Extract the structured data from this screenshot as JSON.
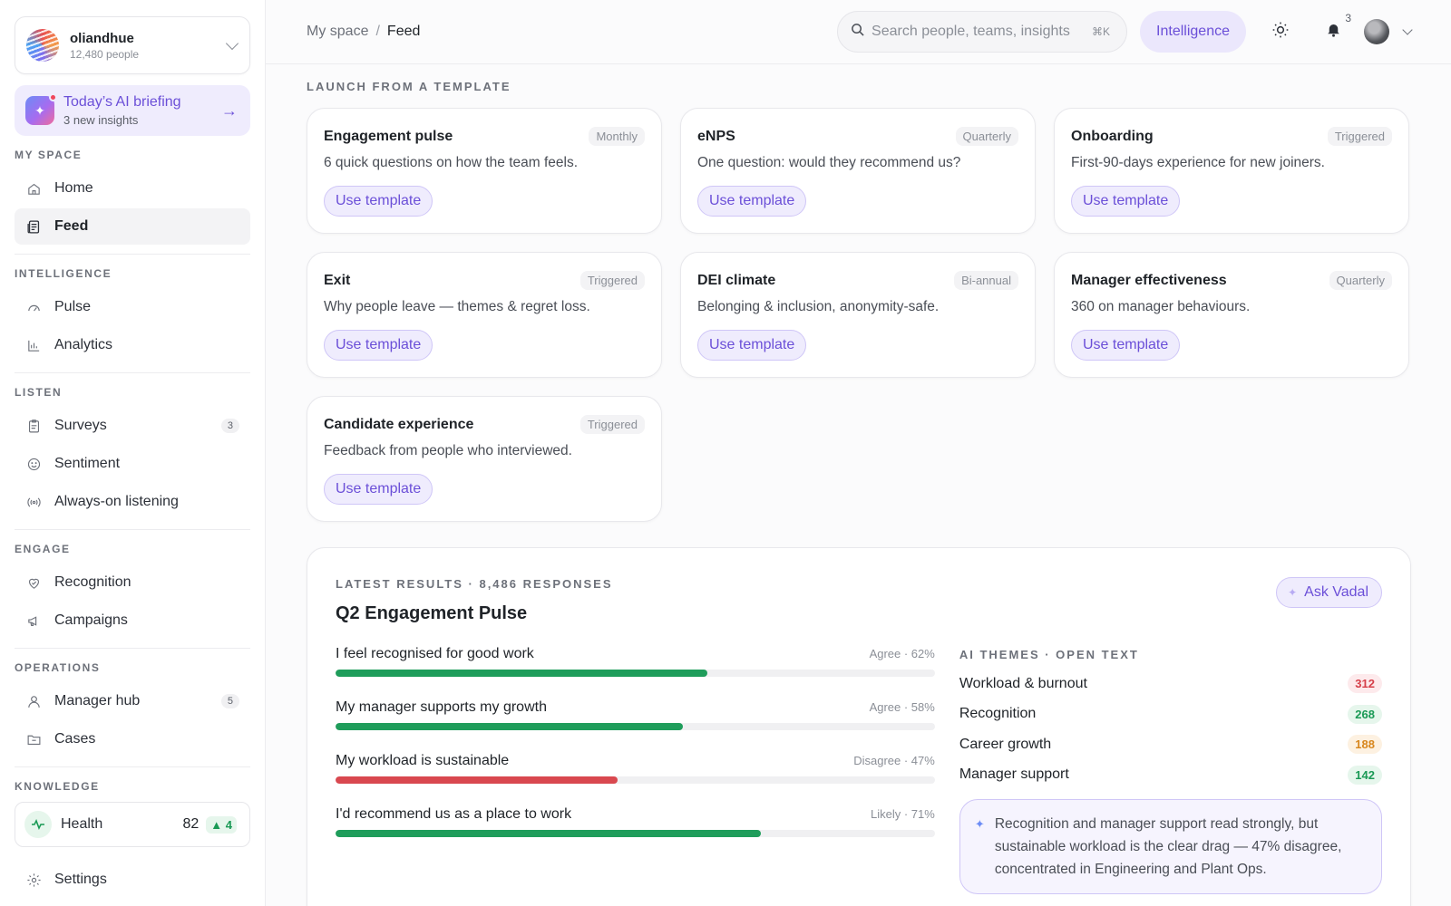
{
  "org": {
    "name": "oliandhue",
    "people": "12,480 people"
  },
  "briefing": {
    "title": "Today’s AI briefing",
    "subtitle": "3 new insights"
  },
  "sidebar": {
    "sections": [
      {
        "label": "MY SPACE",
        "items": [
          {
            "label": "Home",
            "icon": "home-icon"
          },
          {
            "label": "Feed",
            "icon": "feed-icon",
            "active": true
          }
        ]
      },
      {
        "label": "INTELLIGENCE",
        "items": [
          {
            "label": "Pulse",
            "icon": "gauge-icon"
          },
          {
            "label": "Analytics",
            "icon": "chart-icon"
          }
        ]
      },
      {
        "label": "LISTEN",
        "items": [
          {
            "label": "Surveys",
            "icon": "clipboard-icon",
            "badge": "3"
          },
          {
            "label": "Sentiment",
            "icon": "smile-icon"
          },
          {
            "label": "Always-on listening",
            "icon": "broadcast-icon"
          }
        ]
      },
      {
        "label": "ENGAGE",
        "items": [
          {
            "label": "Recognition",
            "icon": "heart-hand-icon"
          },
          {
            "label": "Campaigns",
            "icon": "megaphone-icon"
          }
        ]
      },
      {
        "label": "OPERATIONS",
        "items": [
          {
            "label": "Manager hub",
            "icon": "user-icon",
            "badge": "5"
          },
          {
            "label": "Cases",
            "icon": "folder-icon"
          }
        ]
      }
    ],
    "knowledge_label": "KNOWLEDGE",
    "health": {
      "label": "Health",
      "value": "82",
      "delta": "4"
    },
    "settings_label": "Settings"
  },
  "header": {
    "breadcrumb": [
      "My space",
      "Feed"
    ],
    "search_placeholder": "Search people, teams, insights",
    "search_shortcut": "⌘K",
    "intelligence_label": "Intelligence",
    "notifications_count": "3"
  },
  "templates": {
    "section_label": "LAUNCH FROM A TEMPLATE",
    "button_label": "Use template",
    "items": [
      {
        "title": "Engagement pulse",
        "tag": "Monthly",
        "desc": "6 quick questions on how the team feels."
      },
      {
        "title": "eNPS",
        "tag": "Quarterly",
        "desc": "One question: would they recommend us?"
      },
      {
        "title": "Onboarding",
        "tag": "Triggered",
        "desc": "First-90-days experience for new joiners."
      },
      {
        "title": "Exit",
        "tag": "Triggered",
        "desc": "Why people leave — themes & regret loss."
      },
      {
        "title": "DEI climate",
        "tag": "Bi-annual",
        "desc": "Belonging & inclusion, anonymity-safe."
      },
      {
        "title": "Manager effectiveness",
        "tag": "Quarterly",
        "desc": "360 on manager behaviours."
      },
      {
        "title": "Candidate experience",
        "tag": "Triggered",
        "desc": "Feedback from people who interviewed."
      }
    ]
  },
  "results": {
    "label": "LATEST RESULTS · 8,486 RESPONSES",
    "title": "Q2 Engagement Pulse",
    "ask_label": "Ask Vadal",
    "questions": [
      {
        "q": "I feel recognised for good work",
        "value_label": "Agree · 62%",
        "pct": 62,
        "color": "#1f9d5b"
      },
      {
        "q": "My manager supports my growth",
        "value_label": "Agree · 58%",
        "pct": 58,
        "color": "#1f9d5b"
      },
      {
        "q": "My workload is sustainable",
        "value_label": "Disagree · 47%",
        "pct": 47,
        "color": "#d9484f"
      },
      {
        "q": "I'd recommend us as a place to work",
        "value_label": "Likely · 71%",
        "pct": 71,
        "color": "#1f9d5b"
      }
    ],
    "themes_label": "AI THEMES · OPEN TEXT",
    "themes": [
      {
        "name": "Workload & burnout",
        "count": "312",
        "color": "#d6404a",
        "bg": "#fdeaec"
      },
      {
        "name": "Recognition",
        "count": "268",
        "color": "#1a9a55",
        "bg": "#e6f6ec"
      },
      {
        "name": "Career growth",
        "count": "188",
        "color": "#d8871e",
        "bg": "#fdf1e1"
      },
      {
        "name": "Manager support",
        "count": "142",
        "color": "#1a9a55",
        "bg": "#e6f6ec"
      }
    ],
    "insight": "Recognition and manager support read strongly, but sustainable workload is the clear drag — 47% disagree, concentrated in Engineering and Plant Ops."
  }
}
